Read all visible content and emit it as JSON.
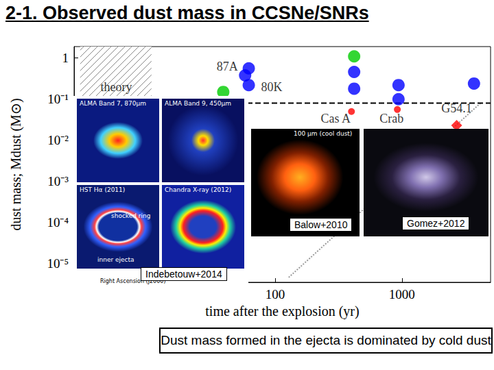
{
  "chart_data": {
    "type": "scatter",
    "title": "2-1. Observed dust mass in CCSNe/SNRs",
    "x_label": "time after the explosion (yr)",
    "y_label": "dust mass; Mdust (M⊙)",
    "log": true,
    "grid": false,
    "xlim": [
      2.6,
      5000
    ],
    "ylim": [
      3.5e-06,
      1.9
    ],
    "xticks": [
      100,
      1000
    ],
    "yticks": [
      1,
      {
        "value": 0.1,
        "label": "10⁻¹"
      },
      {
        "value": 0.01,
        "label": "10⁻²"
      },
      {
        "value": 0.001,
        "label": "10⁻³"
      },
      {
        "value": 0.0001,
        "label": "10⁻⁴"
      },
      {
        "value": 1e-05,
        "label": "10⁻⁵"
      }
    ],
    "theory_region": {
      "label": "theory",
      "x": [
        2.9,
        10.6
      ]
    },
    "series": [
      {
        "type": "line",
        "line_style": "dotted",
        "color": "#9a9a9a",
        "marker": "none",
        "x": [
          128,
          4200
        ],
        "values": [
          4.6e-06,
          0.082
        ]
      },
      {
        "type": "line",
        "line_style": "dashed",
        "color": "#000000",
        "marker": "none",
        "x": [
          2.6,
          5000
        ],
        "values": [
          0.08,
          0.08
        ]
      },
      {
        "type": "scatter",
        "color": "#0000ff",
        "marker": "circle",
        "x": [
          58,
          62,
          62,
          420,
          420,
          940,
          940,
          3700
        ],
        "values": [
          0.38,
          0.22,
          0.56,
          0.46,
          0.18,
          0.22,
          0.1,
          0.24
        ]
      },
      {
        "type": "scatter",
        "color": "#00cc00",
        "marker": "circle",
        "x": [
          39,
          420
        ],
        "values": [
          0.15,
          1.1
        ]
      },
      {
        "type": "scatter",
        "color": "#ff0000",
        "marker": "small_circle",
        "x": [
          400,
          920
        ],
        "values": [
          0.05,
          0.056
        ]
      },
      {
        "type": "scatter",
        "color": "#ff0000",
        "marker": "diamond",
        "x": [
          2700
        ],
        "values": [
          0.023
        ]
      }
    ],
    "annotations": [
      {
        "text": "87A",
        "x": 42,
        "y": 0.63
      },
      {
        "text": "80K",
        "x": 94,
        "y": 0.2
      },
      {
        "text": "Cas A",
        "x": 300,
        "y": 0.034
      },
      {
        "text": "Crab",
        "x": 830,
        "y": 0.034
      },
      {
        "text": "G54.1",
        "x": 2700,
        "y": 0.06
      },
      {
        "text": "theory",
        "x": 5.6,
        "y": 0.2
      }
    ]
  },
  "insets": [
    {
      "panels": [
        {
          "label": "ALMA Band 7, 870μm"
        },
        {
          "label": "ALMA Band 9, 450μm"
        },
        {
          "label": "HST Hα (2011)",
          "notes": [
            "shocked ring",
            "inner ejecta"
          ]
        },
        {
          "label": "Chandra X-ray (2012)"
        }
      ],
      "axis_label": "Right Ascension (J2000)",
      "credit": "Indebetouw+2014"
    },
    {
      "label": "100 μm (cool dust)",
      "credit": "Balow+2010"
    },
    {
      "credit": "Gomez+2012"
    }
  ],
  "footer": "Dust mass formed in the ejecta is dominated by cold dust"
}
